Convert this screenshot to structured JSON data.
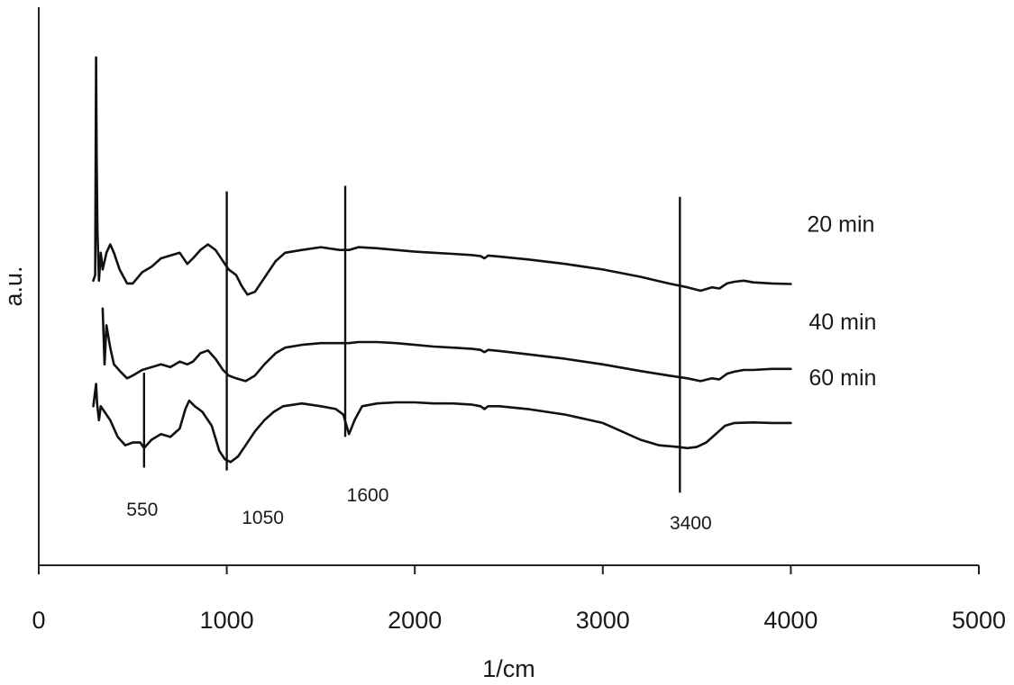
{
  "chart_data": {
    "type": "line",
    "title": "",
    "xlabel": "1/cm",
    "ylabel": "a.u.",
    "xlim": [
      0,
      5000
    ],
    "xticks": [
      0,
      1000,
      2000,
      3000,
      4000,
      5000
    ],
    "xtick_labels": [
      "0",
      "1000",
      "2000",
      "3000",
      "4000",
      "5000"
    ],
    "y_axis_ticks": false,
    "grid": false,
    "legend": "none (series labelled at right end of each curve)",
    "y_units": "relative offset intensity (arbitrary, 0 = bottom of plot area, 10 = top)",
    "series": [
      {
        "name": "20 min",
        "points": [
          [
            290,
            5.1
          ],
          [
            300,
            5.2
          ],
          [
            305,
            9.1
          ],
          [
            308,
            7.4
          ],
          [
            312,
            6.0
          ],
          [
            320,
            5.1
          ],
          [
            330,
            5.6
          ],
          [
            340,
            5.3
          ],
          [
            360,
            5.6
          ],
          [
            380,
            5.75
          ],
          [
            400,
            5.6
          ],
          [
            430,
            5.3
          ],
          [
            470,
            5.05
          ],
          [
            500,
            5.05
          ],
          [
            550,
            5.25
          ],
          [
            600,
            5.35
          ],
          [
            650,
            5.5
          ],
          [
            700,
            5.55
          ],
          [
            750,
            5.6
          ],
          [
            790,
            5.4
          ],
          [
            820,
            5.5
          ],
          [
            860,
            5.65
          ],
          [
            900,
            5.75
          ],
          [
            940,
            5.65
          ],
          [
            980,
            5.45
          ],
          [
            1010,
            5.3
          ],
          [
            1050,
            5.2
          ],
          [
            1080,
            5.0
          ],
          [
            1110,
            4.85
          ],
          [
            1150,
            4.9
          ],
          [
            1200,
            5.15
          ],
          [
            1260,
            5.45
          ],
          [
            1310,
            5.6
          ],
          [
            1400,
            5.65
          ],
          [
            1500,
            5.7
          ],
          [
            1600,
            5.65
          ],
          [
            1650,
            5.65
          ],
          [
            1700,
            5.7
          ],
          [
            1800,
            5.68
          ],
          [
            1900,
            5.65
          ],
          [
            2000,
            5.62
          ],
          [
            2100,
            5.6
          ],
          [
            2200,
            5.58
          ],
          [
            2300,
            5.56
          ],
          [
            2350,
            5.54
          ],
          [
            2370,
            5.5
          ],
          [
            2390,
            5.55
          ],
          [
            2450,
            5.53
          ],
          [
            2600,
            5.48
          ],
          [
            2800,
            5.4
          ],
          [
            3000,
            5.3
          ],
          [
            3200,
            5.17
          ],
          [
            3350,
            5.05
          ],
          [
            3450,
            4.98
          ],
          [
            3520,
            4.92
          ],
          [
            3580,
            4.98
          ],
          [
            3620,
            4.96
          ],
          [
            3660,
            5.05
          ],
          [
            3700,
            5.08
          ],
          [
            3750,
            5.1
          ],
          [
            3800,
            5.07
          ],
          [
            3900,
            5.05
          ],
          [
            4000,
            5.04
          ]
        ]
      },
      {
        "name": "40 min",
        "points": [
          [
            340,
            4.6
          ],
          [
            350,
            3.6
          ],
          [
            360,
            4.3
          ],
          [
            380,
            3.9
          ],
          [
            400,
            3.6
          ],
          [
            440,
            3.45
          ],
          [
            470,
            3.35
          ],
          [
            500,
            3.4
          ],
          [
            550,
            3.5
          ],
          [
            600,
            3.55
          ],
          [
            650,
            3.6
          ],
          [
            700,
            3.55
          ],
          [
            750,
            3.65
          ],
          [
            790,
            3.6
          ],
          [
            820,
            3.65
          ],
          [
            860,
            3.8
          ],
          [
            900,
            3.85
          ],
          [
            940,
            3.7
          ],
          [
            980,
            3.5
          ],
          [
            1010,
            3.4
          ],
          [
            1050,
            3.35
          ],
          [
            1100,
            3.3
          ],
          [
            1150,
            3.4
          ],
          [
            1200,
            3.6
          ],
          [
            1260,
            3.8
          ],
          [
            1310,
            3.9
          ],
          [
            1400,
            3.95
          ],
          [
            1500,
            3.98
          ],
          [
            1600,
            3.98
          ],
          [
            1650,
            3.98
          ],
          [
            1700,
            4.0
          ],
          [
            1800,
            4.0
          ],
          [
            1900,
            3.98
          ],
          [
            2000,
            3.95
          ],
          [
            2100,
            3.92
          ],
          [
            2200,
            3.9
          ],
          [
            2300,
            3.88
          ],
          [
            2350,
            3.86
          ],
          [
            2370,
            3.82
          ],
          [
            2390,
            3.86
          ],
          [
            2450,
            3.84
          ],
          [
            2600,
            3.78
          ],
          [
            2800,
            3.7
          ],
          [
            3000,
            3.6
          ],
          [
            3200,
            3.48
          ],
          [
            3350,
            3.4
          ],
          [
            3450,
            3.35
          ],
          [
            3520,
            3.3
          ],
          [
            3580,
            3.35
          ],
          [
            3620,
            3.33
          ],
          [
            3660,
            3.43
          ],
          [
            3700,
            3.47
          ],
          [
            3750,
            3.5
          ],
          [
            3800,
            3.5
          ],
          [
            3900,
            3.52
          ],
          [
            4000,
            3.52
          ]
        ]
      },
      {
        "name": "60 min",
        "points": [
          [
            290,
            2.85
          ],
          [
            305,
            3.25
          ],
          [
            310,
            2.9
          ],
          [
            320,
            2.6
          ],
          [
            330,
            2.85
          ],
          [
            350,
            2.75
          ],
          [
            380,
            2.6
          ],
          [
            420,
            2.3
          ],
          [
            460,
            2.15
          ],
          [
            500,
            2.2
          ],
          [
            540,
            2.2
          ],
          [
            560,
            2.1
          ],
          [
            600,
            2.25
          ],
          [
            650,
            2.35
          ],
          [
            700,
            2.3
          ],
          [
            750,
            2.45
          ],
          [
            780,
            2.8
          ],
          [
            800,
            2.95
          ],
          [
            830,
            2.85
          ],
          [
            870,
            2.75
          ],
          [
            920,
            2.5
          ],
          [
            960,
            2.05
          ],
          [
            990,
            1.9
          ],
          [
            1020,
            1.85
          ],
          [
            1060,
            1.95
          ],
          [
            1100,
            2.15
          ],
          [
            1150,
            2.4
          ],
          [
            1200,
            2.6
          ],
          [
            1250,
            2.75
          ],
          [
            1300,
            2.85
          ],
          [
            1400,
            2.9
          ],
          [
            1500,
            2.85
          ],
          [
            1580,
            2.8
          ],
          [
            1620,
            2.7
          ],
          [
            1650,
            2.35
          ],
          [
            1680,
            2.6
          ],
          [
            1720,
            2.85
          ],
          [
            1800,
            2.9
          ],
          [
            1900,
            2.92
          ],
          [
            2000,
            2.92
          ],
          [
            2100,
            2.9
          ],
          [
            2200,
            2.9
          ],
          [
            2300,
            2.88
          ],
          [
            2350,
            2.85
          ],
          [
            2370,
            2.8
          ],
          [
            2390,
            2.85
          ],
          [
            2450,
            2.85
          ],
          [
            2600,
            2.8
          ],
          [
            2800,
            2.7
          ],
          [
            3000,
            2.55
          ],
          [
            3100,
            2.4
          ],
          [
            3200,
            2.25
          ],
          [
            3300,
            2.15
          ],
          [
            3400,
            2.12
          ],
          [
            3450,
            2.1
          ],
          [
            3500,
            2.12
          ],
          [
            3550,
            2.2
          ],
          [
            3600,
            2.35
          ],
          [
            3650,
            2.5
          ],
          [
            3700,
            2.55
          ],
          [
            3800,
            2.56
          ],
          [
            3900,
            2.55
          ],
          [
            4000,
            2.55
          ]
        ]
      }
    ],
    "reference_lines": [
      {
        "label": "550",
        "x": 560,
        "y_from": 1.75,
        "y_to": 3.45
      },
      {
        "label": "1050",
        "x": 1000,
        "y_from": 1.7,
        "y_to": 6.7
      },
      {
        "label": "1600",
        "x": 1630,
        "y_from": 2.3,
        "y_to": 6.8
      },
      {
        "label": "3400",
        "x": 3410,
        "y_from": 1.3,
        "y_to": 6.6
      }
    ]
  }
}
